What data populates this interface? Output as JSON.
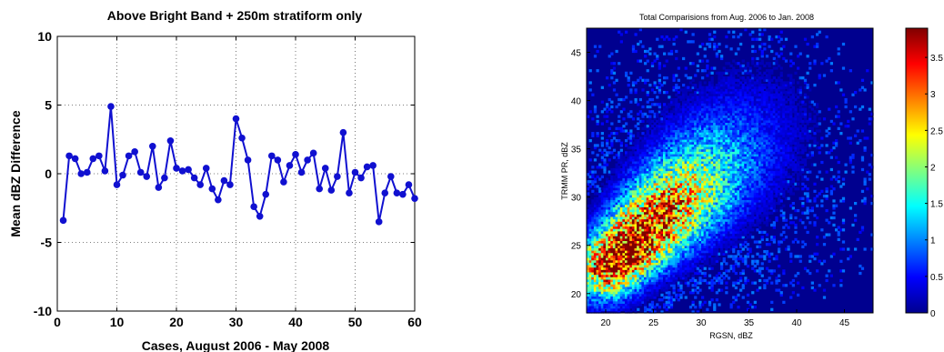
{
  "chart_data": [
    {
      "type": "line",
      "title": "Above Bright Band + 250m stratiform only",
      "xlabel": "Cases, August 2006 - May 2008",
      "ylabel": "Mean dBZ Difference",
      "xlim": [
        0,
        60
      ],
      "ylim": [
        -10,
        10
      ],
      "xticks": [
        "0",
        "10",
        "20",
        "30",
        "40",
        "50",
        "60"
      ],
      "yticks": [
        "-10",
        "-5",
        "0",
        "5",
        "10"
      ],
      "grid": true,
      "color": "#1010d0",
      "x": [
        1,
        2,
        3,
        4,
        5,
        6,
        7,
        8,
        9,
        10,
        11,
        12,
        13,
        14,
        15,
        16,
        17,
        18,
        19,
        20,
        21,
        22,
        23,
        24,
        25,
        26,
        27,
        28,
        29,
        30,
        31,
        32,
        33,
        34,
        35,
        36,
        37,
        38,
        39,
        40,
        41,
        42,
        43,
        44,
        45,
        46,
        47,
        48,
        49,
        50,
        51,
        52,
        53,
        54,
        55,
        56,
        57,
        58,
        59,
        60
      ],
      "y": [
        -3.4,
        1.3,
        1.1,
        0.0,
        0.1,
        1.1,
        1.3,
        0.2,
        4.9,
        -0.8,
        -0.1,
        1.3,
        1.6,
        0.1,
        -0.2,
        2.0,
        -1.0,
        -0.3,
        2.4,
        0.4,
        0.2,
        0.3,
        -0.3,
        -0.8,
        0.4,
        -1.1,
        -1.9,
        -0.5,
        -0.8,
        4.0,
        2.6,
        1.0,
        -2.4,
        -3.1,
        -1.5,
        1.3,
        1.0,
        -0.6,
        0.6,
        1.4,
        0.1,
        1.0,
        1.5,
        -1.1,
        0.4,
        -1.2,
        -0.2,
        3.0,
        -1.4,
        0.1,
        -0.3,
        0.5,
        0.6,
        -3.5,
        -1.4,
        -0.2,
        -1.4,
        -1.5,
        -0.8,
        -1.8
      ]
    },
    {
      "type": "heatmap",
      "title": "Total Comparisions from Aug. 2006 to Jan. 2008",
      "xlabel": "RGSN, dBZ",
      "ylabel": "TRMM PR, dBZ",
      "xlim": [
        18,
        48
      ],
      "ylim": [
        18,
        47.5
      ],
      "xticks": [
        "20",
        "25",
        "30",
        "35",
        "40",
        "45"
      ],
      "yticks": [
        "20",
        "25",
        "30",
        "35",
        "40",
        "45"
      ],
      "colorbar": {
        "range": [
          0,
          3.9
        ],
        "ticks": [
          "0",
          "0.5",
          "1",
          "1.5",
          "2",
          "2.5",
          "3",
          "3.5"
        ],
        "colormap": "jet"
      },
      "background": "#00008f",
      "distribution": {
        "center": [
          21,
          23.5
        ],
        "slope": 0.95,
        "along_sigma": 6.5,
        "across_sigma": 2.2
      }
    }
  ]
}
